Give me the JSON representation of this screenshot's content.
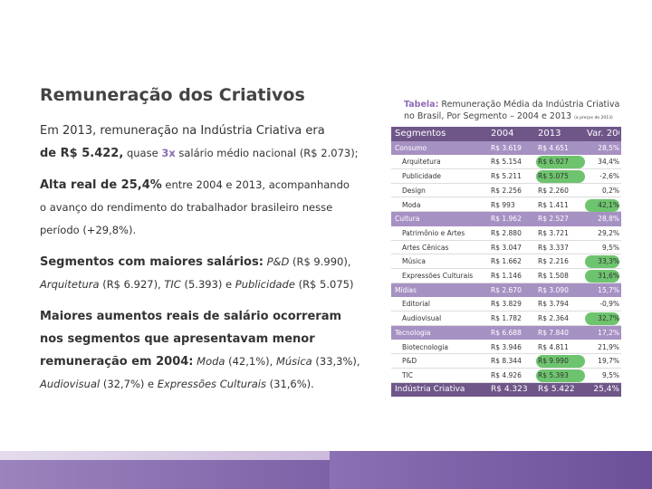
{
  "title": "Remuneração dos Criativos",
  "bullets": {
    "b1": {
      "p1": "Em 2013, remuneração na Indústria Criativa era",
      "p2a": "de R$ 5.422,",
      "p2b": " quase ",
      "p2c": "3x",
      "p2d": " salário médio nacional (R$ 2.073);"
    },
    "b2": {
      "p1a": "Alta real de 25,4%",
      "p1b": " entre 2004 e 2013, acompanhando",
      "p2": "o avanço do rendimento do trabalhador brasileiro nesse",
      "p3": "período (+29,8%)."
    },
    "b3": {
      "p1a": "Segmentos com maiores salários:",
      "p1b": " ",
      "p1c": "P&D",
      "p1d": " (R$ 9.990),",
      "p2a": "Arquitetura",
      "p2b": " (R$ 6.927), ",
      "p2c": "TIC",
      "p2d": " (5.393) e ",
      "p2e": "Publicidade",
      "p2f": " (R$ 5.075)"
    },
    "b4": {
      "p1": "Maiores aumentos reais de salário ocorreram",
      "p2": "nos segmentos que apresentavam menor",
      "p3a": "remuneração em 2004:",
      "p3b": " ",
      "p3c": "Moda",
      "p3d": " (42,1%), ",
      "p3e": "Música",
      "p3f": " (33,3%),",
      "p4a": "Audiovisual",
      "p4b": " (32,7%) e ",
      "p4c": "Expressões Culturais",
      "p4d": " (31,6%)."
    }
  },
  "caption": {
    "label": "Tabela:",
    "text": " Remuneração Média da Indústria Criativa no Brasil, Por Segmento – 2004 e 2013",
    "note": "(a preços de 2013)"
  },
  "table": {
    "header": [
      "Segmentos",
      "2004",
      "2013",
      "Var. 2004-2013"
    ],
    "rows": [
      {
        "type": "seg",
        "cells": [
          "Consumo",
          "R$ 3.619",
          "R$ 4.651",
          "28,5%"
        ]
      },
      {
        "type": "sub",
        "cells": [
          "Arquitetura",
          "R$ 5.154",
          "R$ 6.927",
          "34,4%"
        ],
        "hl": [
          2
        ]
      },
      {
        "type": "sub",
        "cells": [
          "Publicidade",
          "R$ 5.211",
          "R$ 5.075",
          "-2,6%"
        ],
        "hl": [
          2
        ]
      },
      {
        "type": "sub",
        "cells": [
          "Design",
          "R$ 2.256",
          "R$ 2.260",
          "0,2%"
        ]
      },
      {
        "type": "sub",
        "cells": [
          "Moda",
          "R$ 993",
          "R$ 1.411",
          "42,1%"
        ],
        "hl": [
          3
        ]
      },
      {
        "type": "seg",
        "cells": [
          "Cultura",
          "R$ 1.962",
          "R$ 2.527",
          "28,8%"
        ]
      },
      {
        "type": "sub",
        "cells": [
          "Patrimônio e Artes",
          "R$ 2.880",
          "R$ 3.721",
          "29,2%"
        ]
      },
      {
        "type": "sub",
        "cells": [
          "Artes Cênicas",
          "R$ 3.047",
          "R$ 3.337",
          "9,5%"
        ]
      },
      {
        "type": "sub",
        "cells": [
          "Música",
          "R$ 1.662",
          "R$ 2.216",
          "33,3%"
        ],
        "hl": [
          3
        ]
      },
      {
        "type": "sub",
        "cells": [
          "Expressões Culturais",
          "R$ 1.146",
          "R$ 1.508",
          "31,6%"
        ],
        "hl": [
          3
        ]
      },
      {
        "type": "seg",
        "cells": [
          "Mídias",
          "R$ 2.670",
          "R$ 3.090",
          "15,7%"
        ]
      },
      {
        "type": "sub",
        "cells": [
          "Editorial",
          "R$ 3.829",
          "R$ 3.794",
          "-0,9%"
        ]
      },
      {
        "type": "sub",
        "cells": [
          "Audiovisual",
          "R$ 1.782",
          "R$ 2.364",
          "32,7%"
        ],
        "hl": [
          3
        ]
      },
      {
        "type": "seg",
        "cells": [
          "Tecnologia",
          "R$ 6.688",
          "R$ 7.840",
          "17,2%"
        ]
      },
      {
        "type": "sub",
        "cells": [
          "Biotecnologia",
          "R$ 3.946",
          "R$ 4.811",
          "21,9%"
        ]
      },
      {
        "type": "sub",
        "cells": [
          "P&D",
          "R$ 8.344",
          "R$ 9.990",
          "19,7%"
        ],
        "hl": [
          2
        ]
      },
      {
        "type": "sub",
        "cells": [
          "TIC",
          "R$ 4.926",
          "R$ 5.393",
          "9,5%"
        ],
        "hl": [
          2
        ]
      },
      {
        "type": "tot",
        "cells": [
          "Indústria Criativa",
          "R$ 4.323",
          "R$ 5.422",
          "25,4%"
        ]
      }
    ]
  },
  "colors": {
    "accent": "#8e6bb5",
    "header_bg": "#6f5689",
    "segment_bg": "#a691c3",
    "highlight": "#6ec46e"
  }
}
